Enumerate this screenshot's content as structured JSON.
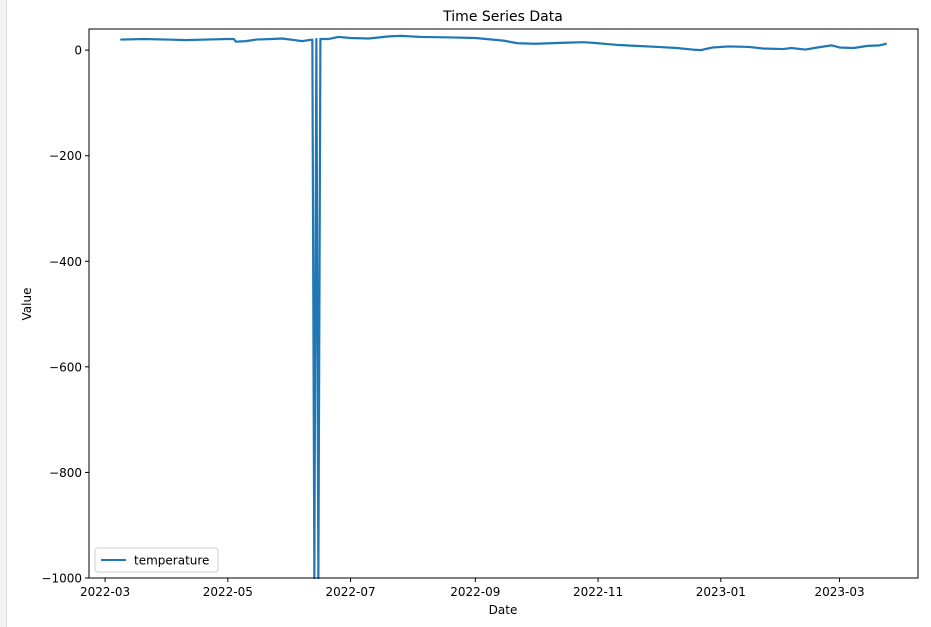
{
  "chart_data": {
    "type": "line",
    "title": "Time Series Data",
    "xlabel": "Date",
    "ylabel": "Value",
    "xlim": [
      "2022-02-21",
      "2023-04-09"
    ],
    "ylim": [
      -1000,
      40
    ],
    "x_ticks": [
      "2022-03-01",
      "2022-05-01",
      "2022-07-01",
      "2022-09-01",
      "2022-11-01",
      "2023-01-01",
      "2023-03-01"
    ],
    "x_tick_labels": [
      "2022-03",
      "2022-05",
      "2022-07",
      "2022-09",
      "2022-11",
      "2023-01",
      "2023-03"
    ],
    "y_ticks": [
      0,
      -200,
      -400,
      -600,
      -800,
      -1000
    ],
    "y_tick_labels": [
      "0",
      "−200",
      "−400",
      "−600",
      "−800",
      "−1000"
    ],
    "grid": false,
    "legend_position": "lower-left",
    "series": [
      {
        "name": "temperature",
        "color": "#1f77b4",
        "points": [
          [
            "2022-03-09",
            20
          ],
          [
            "2022-03-20",
            21
          ],
          [
            "2022-04-01",
            20
          ],
          [
            "2022-04-10",
            19
          ],
          [
            "2022-04-20",
            20
          ],
          [
            "2022-05-01",
            21
          ],
          [
            "2022-05-04",
            21
          ],
          [
            "2022-05-05",
            16
          ],
          [
            "2022-05-10",
            17
          ],
          [
            "2022-05-15",
            20
          ],
          [
            "2022-05-23",
            21
          ],
          [
            "2022-05-28",
            22
          ],
          [
            "2022-06-03",
            19
          ],
          [
            "2022-06-07",
            17
          ],
          [
            "2022-06-12",
            20
          ],
          [
            "2022-06-13",
            -1000
          ],
          [
            "2022-06-14",
            21
          ],
          [
            "2022-06-15",
            -1000
          ],
          [
            "2022-06-16",
            21
          ],
          [
            "2022-06-20",
            21
          ],
          [
            "2022-06-25",
            25
          ],
          [
            "2022-07-01",
            23
          ],
          [
            "2022-07-10",
            22
          ],
          [
            "2022-07-20",
            26
          ],
          [
            "2022-07-26",
            27
          ],
          [
            "2022-08-05",
            25
          ],
          [
            "2022-08-20",
            24
          ],
          [
            "2022-09-01",
            23
          ],
          [
            "2022-09-15",
            18
          ],
          [
            "2022-09-22",
            13
          ],
          [
            "2022-10-01",
            12
          ],
          [
            "2022-10-15",
            14
          ],
          [
            "2022-10-25",
            15
          ],
          [
            "2022-11-01",
            13
          ],
          [
            "2022-11-10",
            10
          ],
          [
            "2022-11-20",
            8
          ],
          [
            "2022-12-01",
            6
          ],
          [
            "2022-12-10",
            4
          ],
          [
            "2022-12-18",
            1
          ],
          [
            "2022-12-22",
            0
          ],
          [
            "2022-12-28",
            5
          ],
          [
            "2023-01-05",
            7
          ],
          [
            "2023-01-15",
            6
          ],
          [
            "2023-01-22",
            3
          ],
          [
            "2023-02-01",
            2
          ],
          [
            "2023-02-05",
            4
          ],
          [
            "2023-02-12",
            1
          ],
          [
            "2023-02-18",
            5
          ],
          [
            "2023-02-25",
            9
          ],
          [
            "2023-03-01",
            5
          ],
          [
            "2023-03-08",
            4
          ],
          [
            "2023-03-15",
            8
          ],
          [
            "2023-03-21",
            9
          ],
          [
            "2023-03-24",
            12
          ]
        ]
      }
    ]
  }
}
